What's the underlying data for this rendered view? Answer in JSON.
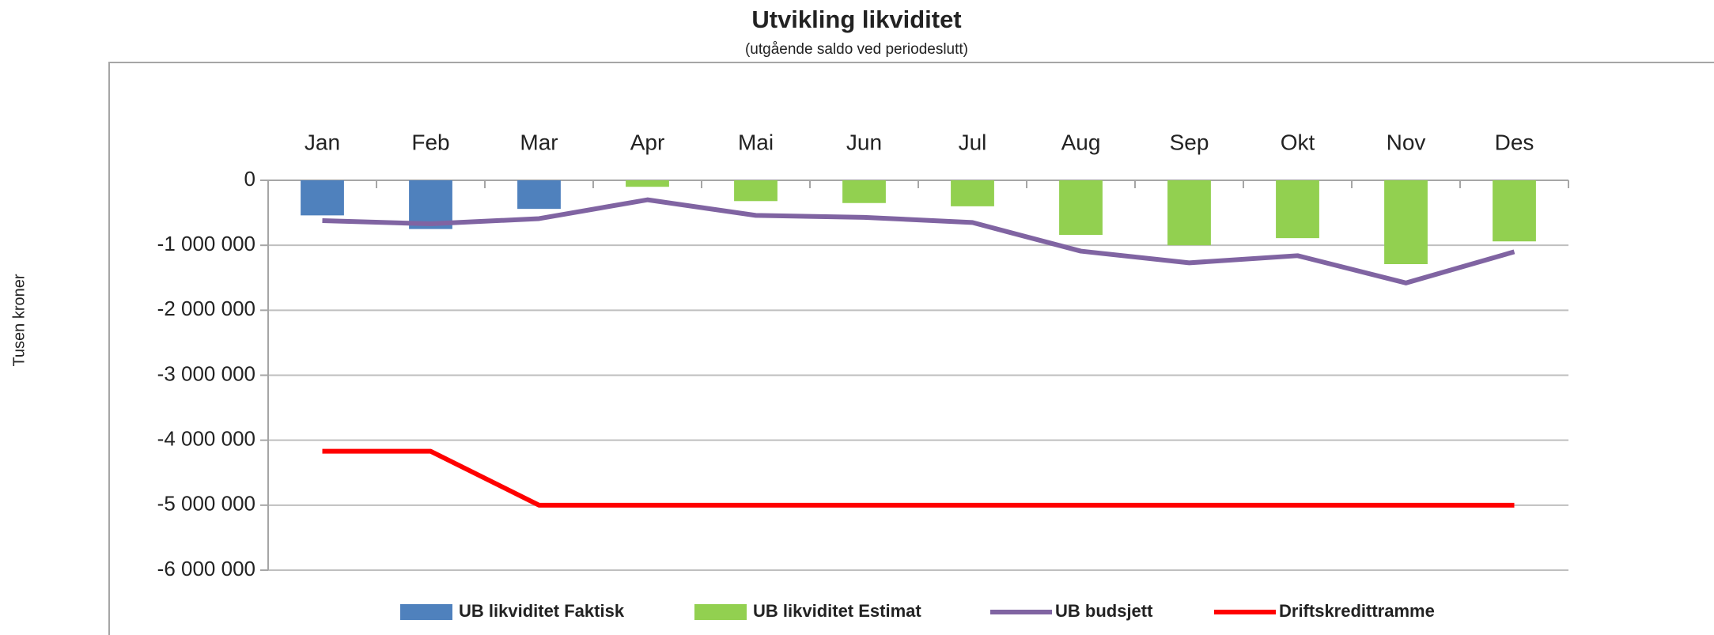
{
  "chart_data": {
    "type": "bar-line",
    "title": "Utvikling likviditet",
    "subtitle": "(utgående saldo ved periodeslutt)",
    "y_label": "Tusen kroner",
    "categories": [
      "Jan",
      "Feb",
      "Mar",
      "Apr",
      "Mai",
      "Jun",
      "Jul",
      "Aug",
      "Sep",
      "Okt",
      "Nov",
      "Des"
    ],
    "series": [
      {
        "name": "UB likviditet Faktisk",
        "kind": "bar",
        "color": "#4f81bd",
        "values": [
          -540000,
          -750000,
          -440000,
          null,
          null,
          null,
          null,
          null,
          null,
          null,
          null,
          null
        ]
      },
      {
        "name": "UB likviditet Estimat",
        "kind": "bar",
        "color": "#92d050",
        "values": [
          null,
          null,
          null,
          -100000,
          -320000,
          -350000,
          -400000,
          -840000,
          -1000000,
          -890000,
          -1290000,
          -940000
        ]
      },
      {
        "name": "UB budsjett",
        "kind": "line",
        "color": "#8064a2",
        "values": [
          -620000,
          -670000,
          -590000,
          -300000,
          -540000,
          -570000,
          -650000,
          -1090000,
          -1270000,
          -1160000,
          -1580000,
          -1100000
        ]
      },
      {
        "name": "Driftskredittramme",
        "kind": "line",
        "color": "#ff0000",
        "values": [
          -4170000,
          -4170000,
          -5000000,
          -5000000,
          -5000000,
          -5000000,
          -5000000,
          -5000000,
          -5000000,
          -5000000,
          -5000000,
          -5000000
        ]
      }
    ],
    "ylim": [
      -6000000,
      0
    ],
    "yticks": [
      0,
      {
        "value": -1000000,
        "label": "-1 000 000"
      },
      {
        "value": -2000000,
        "label": "-2 000 000"
      },
      {
        "value": -3000000,
        "label": "-3 000 000"
      },
      {
        "value": -4000000,
        "label": "-4 000 000"
      },
      {
        "value": -5000000,
        "label": "-5 000 000"
      },
      {
        "value": -6000000,
        "label": "-6 000 000"
      }
    ],
    "grid": true,
    "legend": "bottom"
  }
}
